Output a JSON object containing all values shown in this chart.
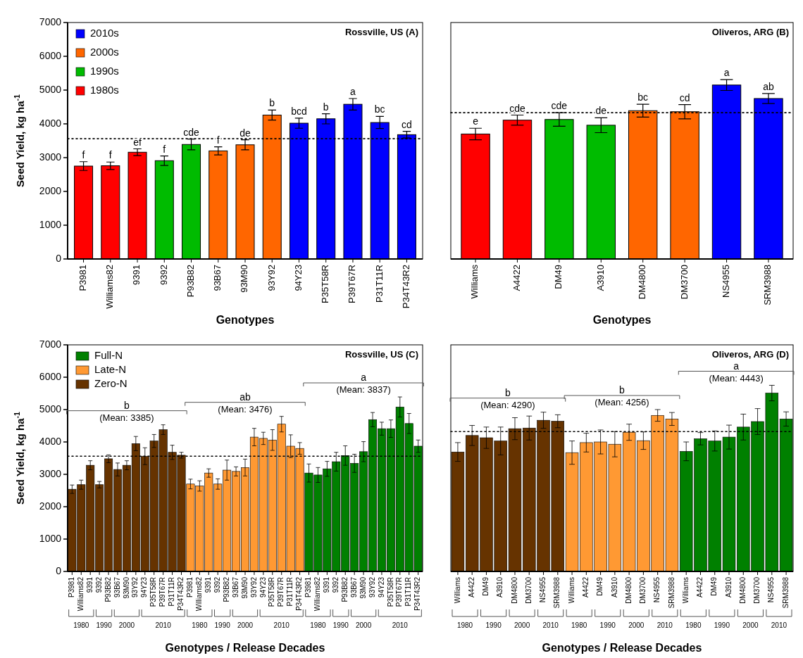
{
  "chart_data": [
    {
      "type": "bar",
      "title": "Rossville, US (A)",
      "xlabel": "Genotypes",
      "ylabel": "Seed Yield, kg ha$^{-1}$",
      "categories": [
        "P3981",
        "Williams82",
        "9391",
        "9392",
        "P93B82",
        "93B67",
        "93M90",
        "93Y92",
        "94Y23",
        "P35T58R",
        "P39T67R",
        "P31T11R",
        "P34T43R2"
      ],
      "ylim": [
        0,
        7000
      ],
      "yticks": [
        0,
        1000,
        2000,
        3000,
        4000,
        5000,
        6000,
        7000
      ],
      "legend": "top left",
      "series": [
        {
          "name": "2010s",
          "color": "#0000ff",
          "values": [
            null,
            null,
            null,
            null,
            null,
            null,
            null,
            null,
            4020,
            4150,
            4580,
            4040,
            3680
          ],
          "errors": [
            null,
            null,
            null,
            null,
            null,
            null,
            null,
            null,
            150,
            150,
            170,
            180,
            100
          ]
        },
        {
          "name": "2000s",
          "color": "#ff6600",
          "values": [
            null,
            null,
            null,
            null,
            null,
            3200,
            3380,
            4260,
            null,
            null,
            null,
            null,
            null
          ],
          "errors": [
            null,
            null,
            null,
            null,
            null,
            120,
            150,
            150,
            null,
            null,
            null,
            null,
            null
          ]
        },
        {
          "name": "1990s",
          "color": "#00bb00",
          "values": [
            null,
            null,
            null,
            2910,
            3390,
            null,
            null,
            null,
            null,
            null,
            null,
            null,
            null
          ],
          "errors": [
            null,
            null,
            null,
            140,
            160,
            null,
            null,
            null,
            null,
            null,
            null,
            null,
            null
          ]
        },
        {
          "name": "1980s",
          "color": "#ff0000",
          "values": [
            2750,
            2760,
            3160,
            null,
            null,
            null,
            null,
            null,
            null,
            null,
            null,
            null,
            null
          ],
          "errors": [
            130,
            110,
            100,
            null,
            null,
            null,
            null,
            null,
            null,
            null,
            null,
            null,
            null
          ]
        }
      ],
      "ref_lines": [
        {
          "axis": "y",
          "value": 3560,
          "color": "#000000",
          "line_style": "dotted"
        }
      ],
      "annotations": [
        {
          "text": "f",
          "x": "P3981",
          "y": 2880
        },
        {
          "text": "f",
          "x": "Williams82",
          "y": 2870
        },
        {
          "text": "ef",
          "x": "9391",
          "y": 3260
        },
        {
          "text": "f",
          "x": "9392",
          "y": 3050
        },
        {
          "text": "cde",
          "x": "P93B82",
          "y": 3550
        },
        {
          "text": "f",
          "x": "93B67",
          "y": 3320
        },
        {
          "text": "de",
          "x": "93M90",
          "y": 3530
        },
        {
          "text": "b",
          "x": "93Y92",
          "y": 4410
        },
        {
          "text": "bcd",
          "x": "94Y23",
          "y": 4170
        },
        {
          "text": "b",
          "x": "P35T58R",
          "y": 4300
        },
        {
          "text": "a",
          "x": "P39T67R",
          "y": 4750
        },
        {
          "text": "bc",
          "x": "P31T11R",
          "y": 4220
        },
        {
          "text": "cd",
          "x": "P34T43R2",
          "y": 3780
        }
      ]
    },
    {
      "type": "bar",
      "title": "Oliveros, ARG (B)",
      "xlabel": "Genotypes",
      "categories": [
        "Williams",
        "A4422",
        "DM49",
        "A3910",
        "DM4800",
        "DM3700",
        "NS4955",
        "SRM3988"
      ],
      "ylim": [
        0,
        7000
      ],
      "tick_labels": "x",
      "series": [
        {
          "color": "#ff0000",
          "values": [
            3700,
            4110,
            null,
            null,
            null,
            null,
            null,
            null
          ],
          "errors": [
            170,
            150,
            null,
            null,
            null,
            null,
            null,
            null
          ]
        },
        {
          "color": "#00bb00",
          "values": [
            null,
            null,
            4130,
            3960,
            null,
            null,
            null,
            null
          ],
          "errors": [
            null,
            null,
            200,
            220,
            null,
            null,
            null,
            null
          ]
        },
        {
          "color": "#ff6600",
          "values": [
            null,
            null,
            null,
            null,
            4390,
            4360,
            null,
            null
          ],
          "errors": [
            null,
            null,
            null,
            null,
            190,
            210,
            null,
            null
          ]
        },
        {
          "color": "#0000ff",
          "values": [
            null,
            null,
            null,
            null,
            null,
            null,
            5150,
            4750
          ],
          "errors": [
            null,
            null,
            null,
            null,
            null,
            null,
            160,
            150
          ]
        }
      ],
      "ref_lines": [
        {
          "axis": "y",
          "value": 4330,
          "color": "#000000",
          "line_style": "dotted"
        }
      ],
      "annotations": [
        {
          "text": "e",
          "x": "Williams",
          "y": 3870
        },
        {
          "text": "cde",
          "x": "A4422",
          "y": 4260
        },
        {
          "text": "cde",
          "x": "DM49",
          "y": 4330
        },
        {
          "text": "de",
          "x": "A3910",
          "y": 4180
        },
        {
          "text": "bc",
          "x": "DM4800",
          "y": 4580
        },
        {
          "text": "cd",
          "x": "DM3700",
          "y": 4570
        },
        {
          "text": "a",
          "x": "NS4955",
          "y": 5310
        },
        {
          "text": "ab",
          "x": "SRM3988",
          "y": 4900
        }
      ]
    },
    {
      "type": "bar",
      "title": "Rossville, US (C)",
      "xlabel": "Genotypes / Release Decades",
      "ylabel": "Seed Yield, kg ha$^{-1}$",
      "categories": [
        "P3981",
        "Williams82",
        "9391",
        "9392",
        "P93B82",
        "93B67",
        "93M90",
        "93Y92",
        "94Y23",
        "P35T58R",
        "P39T67R",
        "P31T11R",
        "P34T43R2",
        "P3981",
        "Williams82",
        "9391",
        "9392",
        "P93B82",
        "93B67",
        "93M90",
        "93Y92",
        "94Y23",
        "P35T58R",
        "P39T67R",
        "P31T11R",
        "P34T43R2",
        "P3981",
        "Williams82",
        "9391",
        "9392",
        "P93B82",
        "93B67",
        "93M90",
        "93Y92",
        "94Y23",
        "P35T58R",
        "P39T67R",
        "P31T11R",
        "P34T43R2"
      ],
      "ylim": [
        0,
        7000
      ],
      "yticks": [
        0,
        1000,
        2000,
        3000,
        4000,
        5000,
        6000,
        7000
      ],
      "legend": "top left",
      "series": [
        {
          "name": "Full-N",
          "color": "#008000",
          "values": [
            null,
            null,
            null,
            null,
            null,
            null,
            null,
            null,
            null,
            null,
            null,
            null,
            null,
            null,
            null,
            null,
            null,
            null,
            null,
            null,
            null,
            null,
            null,
            null,
            null,
            null,
            3040,
            2980,
            3170,
            3390,
            3580,
            3340,
            3700,
            4690,
            4410,
            4410,
            5080,
            4570,
            3870
          ],
          "errors": [
            null,
            null,
            null,
            null,
            null,
            null,
            null,
            null,
            null,
            null,
            null,
            null,
            null,
            null,
            null,
            null,
            null,
            null,
            null,
            null,
            null,
            null,
            null,
            null,
            null,
            null,
            280,
            230,
            230,
            290,
            300,
            280,
            310,
            220,
            200,
            270,
            310,
            310,
            190
          ]
        },
        {
          "name": "Late-N",
          "color": "#ff9933",
          "values": [
            null,
            null,
            null,
            null,
            null,
            null,
            null,
            null,
            null,
            null,
            null,
            null,
            null,
            2700,
            2640,
            3040,
            2700,
            3130,
            3090,
            3210,
            4150,
            4110,
            4060,
            4550,
            3870,
            3800,
            null,
            null,
            null,
            null,
            null,
            null,
            null,
            null,
            null,
            null,
            null,
            null,
            null
          ],
          "errors": [
            null,
            null,
            null,
            null,
            null,
            null,
            null,
            null,
            null,
            null,
            null,
            null,
            null,
            150,
            160,
            130,
            160,
            310,
            140,
            260,
            270,
            190,
            320,
            240,
            350,
            180,
            null,
            null,
            null,
            null,
            null,
            null,
            null,
            null,
            null,
            null,
            null,
            null,
            null
          ]
        },
        {
          "name": "Zero-N",
          "color": "#663300",
          "values": [
            2540,
            2680,
            3280,
            2680,
            3480,
            3150,
            3280,
            3950,
            3560,
            4030,
            4380,
            3680,
            3590,
            null,
            null,
            null,
            null,
            null,
            null,
            null,
            null,
            null,
            null,
            null,
            null,
            null,
            null,
            null,
            null,
            null,
            null,
            null,
            null,
            null,
            null,
            null,
            null,
            null,
            null
          ],
          "errors": [
            130,
            140,
            140,
            100,
            120,
            200,
            140,
            220,
            260,
            200,
            150,
            220,
            90,
            null,
            null,
            null,
            null,
            null,
            null,
            null,
            null,
            null,
            null,
            null,
            null,
            null,
            null,
            null,
            null,
            null,
            null,
            null,
            null,
            null,
            null,
            null,
            null,
            null,
            null
          ]
        }
      ],
      "ref_lines": [
        {
          "axis": "y",
          "value": 3560,
          "color": "#000000",
          "line_style": "dotted"
        }
      ],
      "annotations": [
        "b",
        "(Mean: 3385)",
        "ab",
        "(Mean: 3476)",
        "a",
        "(Mean: 3837)",
        "1980",
        "1990",
        "2000",
        "2010",
        "1980",
        "1990",
        "2000",
        "2010",
        "1980",
        "1990",
        "2000",
        "2010"
      ]
    },
    {
      "type": "bar",
      "title": "Oliveros, ARG (D)",
      "xlabel": "Genotypes / Release Decades",
      "categories": [
        "Williams",
        "A4422",
        "DM49",
        "A3910",
        "DM4800",
        "DM3700",
        "NS4955",
        "SRM3988",
        "Williams",
        "A4422",
        "DM49",
        "A3910",
        "DM4800",
        "DM3700",
        "NS4955",
        "SRM3988",
        "Williams",
        "A4422",
        "DM49",
        "A3910",
        "DM4800",
        "DM3700",
        "NS4955",
        "SRM3988"
      ],
      "ylim": [
        0,
        7000
      ],
      "tick_labels": "x",
      "series": [
        {
          "color": "#663300",
          "values": [
            3690,
            4200,
            4130,
            4030,
            4410,
            4430,
            4670,
            4640,
            null,
            null,
            null,
            null,
            null,
            null,
            null,
            null,
            null,
            null,
            null,
            null,
            null,
            null,
            null,
            null
          ],
          "errors": [
            290,
            310,
            330,
            430,
            340,
            370,
            250,
            200,
            null,
            null,
            null,
            null,
            null,
            null,
            null,
            null,
            null,
            null,
            null,
            null,
            null,
            null,
            null,
            null
          ]
        },
        {
          "color": "#ff9933",
          "values": [
            null,
            null,
            null,
            null,
            null,
            null,
            null,
            null,
            3670,
            3980,
            4000,
            3930,
            4300,
            4040,
            4820,
            4710,
            null,
            null,
            null,
            null,
            null,
            null,
            null,
            null
          ],
          "errors": [
            null,
            null,
            null,
            null,
            null,
            null,
            null,
            null,
            360,
            290,
            370,
            390,
            250,
            270,
            180,
            200,
            null,
            null,
            null,
            null,
            null,
            null,
            null,
            null
          ]
        },
        {
          "color": "#008000",
          "values": [
            null,
            null,
            null,
            null,
            null,
            null,
            null,
            null,
            null,
            null,
            null,
            null,
            null,
            null,
            null,
            null,
            3710,
            4100,
            4030,
            4150,
            4460,
            4630,
            5510,
            4710
          ],
          "errors": [
            null,
            null,
            null,
            null,
            null,
            null,
            null,
            null,
            null,
            null,
            null,
            null,
            null,
            null,
            null,
            null,
            290,
            190,
            310,
            370,
            400,
            400,
            240,
            220
          ]
        }
      ],
      "ref_lines": [
        {
          "axis": "y",
          "value": 4320,
          "color": "#000000",
          "line_style": "dotted"
        }
      ],
      "annotations": [
        "b",
        "(Mean: 4290)",
        "b",
        "(Mean: 4256)",
        "a",
        "(Mean: 4443)",
        "1980",
        "1990",
        "2000",
        "2010",
        "1980",
        "1990",
        "2000",
        "2010",
        "1980",
        "1990",
        "2000",
        "2010"
      ]
    }
  ]
}
